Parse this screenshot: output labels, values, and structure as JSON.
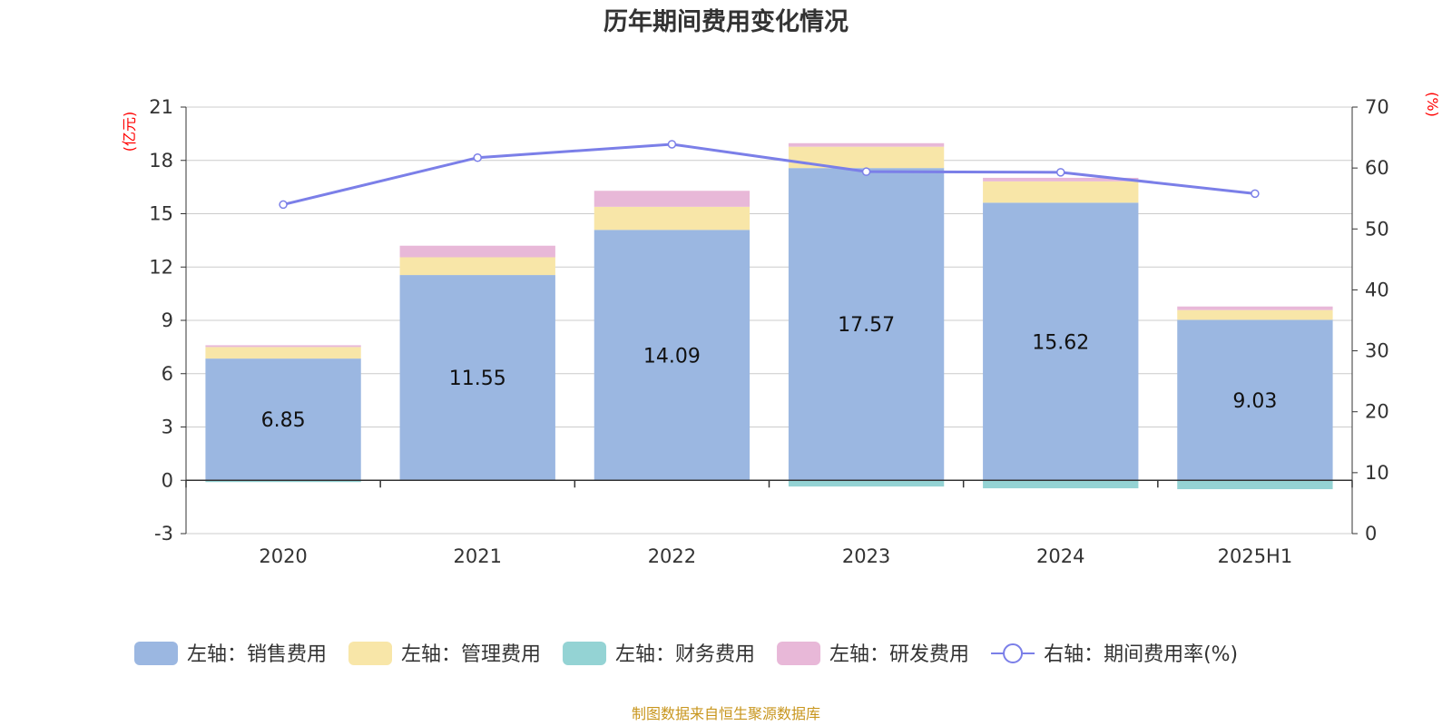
{
  "chart_data": {
    "type": "bar",
    "title": "历年期间费用变化情况",
    "categories": [
      "2020",
      "2021",
      "2022",
      "2023",
      "2024",
      "2025H1"
    ],
    "left_axis": {
      "unit": "(亿元)",
      "min": -3,
      "max": 21,
      "ticks": [
        -3,
        0,
        3,
        6,
        9,
        12,
        15,
        18,
        21
      ]
    },
    "right_axis": {
      "unit": "(%)",
      "min": 0,
      "max": 70,
      "ticks": [
        0,
        10,
        20,
        30,
        40,
        50,
        60,
        70
      ]
    },
    "series": [
      {
        "name": "左轴：销售费用",
        "type": "stacked-bar",
        "axis": "left",
        "color": "#9bb7e1",
        "values": [
          6.85,
          11.55,
          14.09,
          17.57,
          15.62,
          9.03
        ],
        "show_labels": true
      },
      {
        "name": "左轴：管理费用",
        "type": "stacked-bar",
        "axis": "left",
        "color": "#f8e6a8",
        "values": [
          0.65,
          1.0,
          1.3,
          1.2,
          1.2,
          0.55
        ]
      },
      {
        "name": "左轴：财务费用",
        "type": "stacked-bar",
        "axis": "left",
        "color": "#94d3d4",
        "values": [
          -0.1,
          0.0,
          0.0,
          -0.35,
          -0.45,
          -0.5
        ]
      },
      {
        "name": "左轴：研发费用",
        "type": "stacked-bar",
        "axis": "left",
        "color": "#e8b8d8",
        "values": [
          0.1,
          0.65,
          0.9,
          0.2,
          0.2,
          0.2
        ]
      },
      {
        "name": "右轴：期间费用率(%)",
        "type": "line",
        "axis": "right",
        "color": "#7b7fe8",
        "values": [
          54.0,
          61.7,
          63.9,
          59.4,
          59.3,
          55.8
        ]
      }
    ],
    "legend_position": "bottom",
    "grid": true,
    "source": "制图数据来自恒生聚源数据库"
  }
}
